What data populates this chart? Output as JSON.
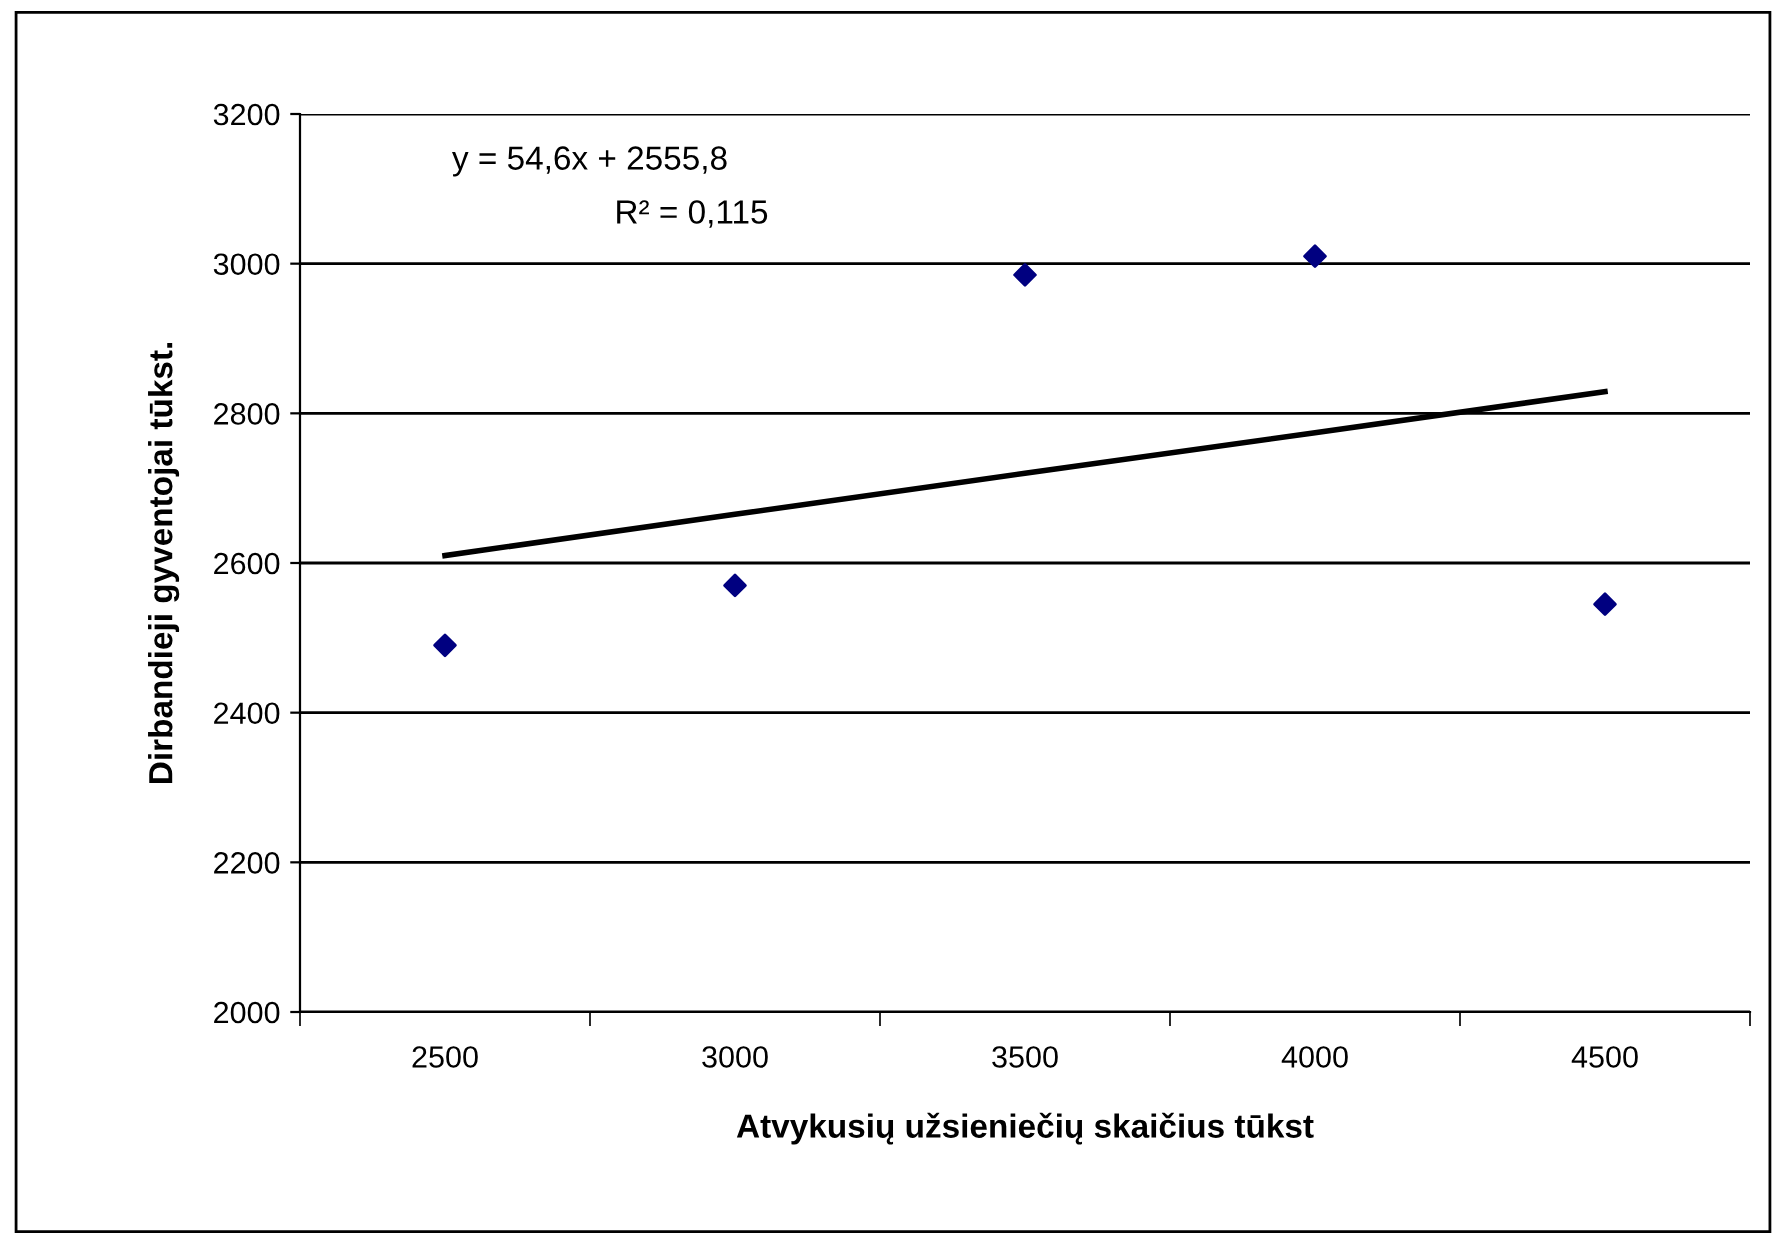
{
  "chart_data": {
    "type": "scatter",
    "xlabel": "Atvykusių užsieniečių skaičius tūkst",
    "ylabel": "Dirbandieji gyventojai tūkst.",
    "categories": [
      "2500",
      "3000",
      "3500",
      "4000",
      "4500"
    ],
    "series": [
      {
        "color": "#000080",
        "marker": "diamond",
        "values": [
          2490,
          2570,
          2985,
          3010,
          2545
        ]
      },
      {
        "type": "line",
        "color": "#000000",
        "marker": "none",
        "line_style": "solid",
        "values": [
          2610,
          2665,
          2720,
          2774,
          2829
        ]
      }
    ],
    "annotations": [
      "y = 54,6x + 2555,8",
      "R² = 0,115"
    ],
    "ylim": [
      2000,
      3200
    ],
    "yticks": [
      2000,
      2200,
      2400,
      2600,
      2800,
      3000,
      3200
    ],
    "grid": "y",
    "legend": false
  }
}
